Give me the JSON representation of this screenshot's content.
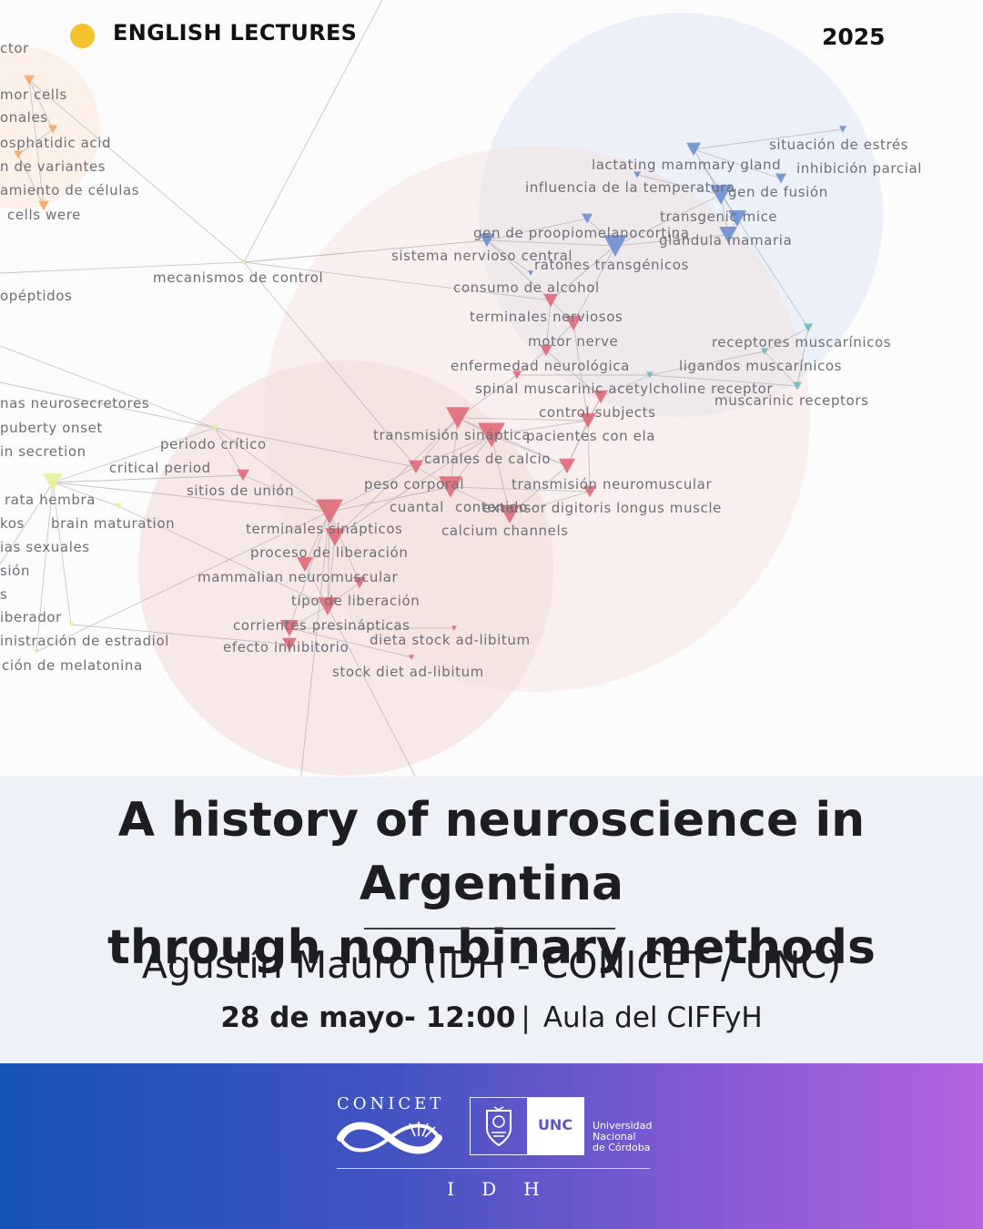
{
  "header": {
    "series_label": "ENGLISH LECTURES",
    "year": "2025",
    "colors": {
      "dot": "#f6c12c"
    }
  },
  "network": {
    "labels": [
      "ctor",
      "mor cells",
      "onales",
      "osphatidic acid",
      "n de variantes",
      "amiento de células",
      "cells were",
      "opéptidos",
      "mecanismos de control",
      "lactating mammary gland",
      "situación de estrés",
      "inhibición parcial",
      "influencia de la temperatura",
      "gen de fusión",
      "transgenic mice",
      "gen de proopiomelanocortina",
      "glándula mamaria",
      "sistema nervioso central",
      "ratones transgénicos",
      "consumo de alcohol",
      "terminales nerviosos",
      "motor nerve",
      "receptores muscarínicos",
      "enfermedad neurológica",
      "ligandos muscarínicos",
      "spinal muscarinic acetylcholine receptor",
      "muscarinic receptors",
      "nas neurosecretores",
      "control subjects",
      "puberty onset",
      "transmisión sináptica",
      "pacientes con ela",
      "in secretion",
      "periodo crítico",
      "canales de calcio",
      "critical period",
      "sitios de unión",
      "peso corporal",
      "transmisión neuromuscular",
      "rata hembra",
      "cuantal",
      "contenido",
      "extensor digitoris longus muscle",
      "kos",
      "brain maturation",
      "terminales sinápticos",
      "calcium channels",
      "ias sexuales",
      "proceso de liberación",
      "sión",
      "mammalian neuromuscular",
      "s",
      "tipo de liberación",
      "iberador",
      "corrientes presinápticas",
      "inistración de estradiol",
      "efecto inhibitorio",
      "dieta stock ad-libitum",
      "ción de melatonina",
      "stock diet ad-libitum"
    ],
    "colors": {
      "red_cluster": "#e06a78",
      "blue_cluster": "#6d8fd0",
      "orange_cluster": "#f4a66a",
      "yellow_cluster": "#e9ef9a",
      "teal_cluster": "#6fb8c2",
      "edge": "#9a9aa0"
    }
  },
  "event": {
    "title_line1": "A history of neuroscience in Argentina",
    "title_line2": "through non-binary methods",
    "speaker": "Agustín Mauro (IDH - CONICET / UNC)",
    "date_time": "28 de mayo- 12:00",
    "separator": "|",
    "venue": "Aula del CIFFyH"
  },
  "footer": {
    "conicet": "CONICET",
    "unc": "UNC",
    "unc_name_line1": "Universidad",
    "unc_name_line2": "Nacional",
    "unc_name_line3": "de Córdoba",
    "idh": "IDH",
    "colors": {
      "gradient_start": "#1553b8",
      "gradient_end": "#b263dd"
    }
  }
}
